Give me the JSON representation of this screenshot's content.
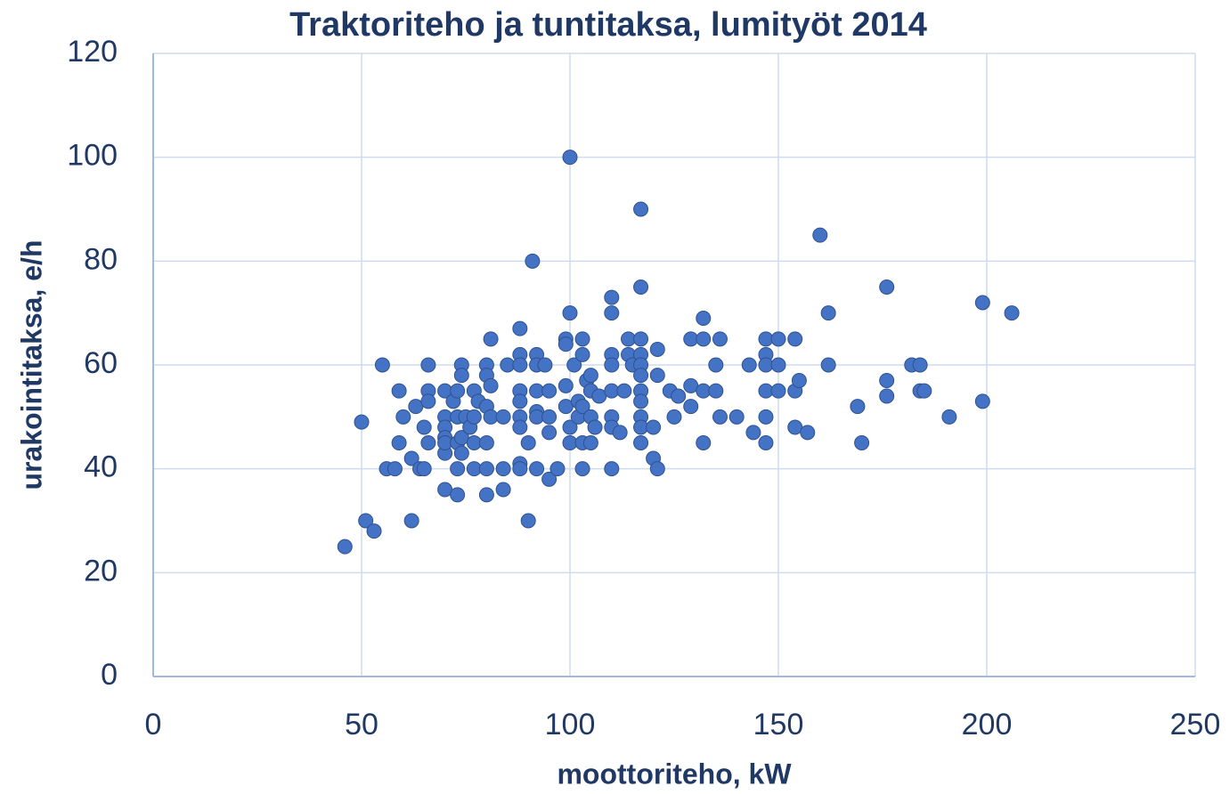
{
  "chart_data": {
    "type": "scatter",
    "title": "Traktoriteho ja tuntitaksa, lumityöt 2014",
    "xlabel": "moottoriteho, kW",
    "ylabel": "urakointitaksa, e/h",
    "color": "#4472c4",
    "grid": true,
    "xlim": [
      0,
      250
    ],
    "xticks": [
      0,
      50,
      100,
      150,
      200,
      250
    ],
    "ylim": [
      0,
      120
    ],
    "yticks": [
      0,
      20,
      40,
      60,
      80,
      100,
      120
    ],
    "x": [
      46,
      50,
      51,
      53,
      55,
      56,
      58,
      59,
      59,
      60,
      62,
      62,
      63,
      64,
      65,
      65,
      66,
      66,
      66,
      66,
      70,
      70,
      70,
      70,
      70,
      70,
      70,
      72,
      73,
      73,
      73,
      73,
      73,
      74,
      74,
      74,
      74,
      75,
      76,
      77,
      77,
      77,
      77,
      78,
      80,
      80,
      80,
      80,
      80,
      80,
      81,
      81,
      81,
      84,
      84,
      84,
      85,
      88,
      88,
      88,
      88,
      88,
      88,
      88,
      88,
      88,
      90,
      90,
      91,
      92,
      92,
      92,
      92,
      92,
      92,
      94,
      95,
      95,
      95,
      95,
      97,
      99,
      99,
      99,
      99,
      100,
      100,
      100,
      100,
      101,
      102,
      102,
      103,
      103,
      103,
      103,
      103,
      104,
      105,
      105,
      105,
      105,
      106,
      107,
      110,
      110,
      110,
      110,
      110,
      110,
      110,
      110,
      112,
      113,
      114,
      114,
      115,
      117,
      117,
      117,
      117,
      117,
      117,
      117,
      117,
      117,
      117,
      117,
      120,
      120,
      121,
      121,
      121,
      124,
      125,
      126,
      129,
      129,
      129,
      132,
      132,
      132,
      132,
      135,
      135,
      136,
      136,
      140,
      143,
      144,
      147,
      147,
      147,
      147,
      147,
      147,
      150,
      150,
      150,
      154,
      154,
      154,
      155,
      157,
      160,
      162,
      162,
      169,
      170,
      176,
      176,
      176,
      182,
      184,
      184,
      185,
      191,
      199,
      199,
      206
    ],
    "values": [
      25,
      49,
      30,
      28,
      60,
      40,
      40,
      55,
      45,
      50,
      30,
      42,
      52,
      40,
      40,
      48,
      60,
      55,
      53,
      45,
      55,
      50,
      48,
      46,
      43,
      36,
      45,
      53,
      55,
      50,
      45,
      40,
      35,
      60,
      58,
      46,
      43,
      50,
      48,
      55,
      50,
      45,
      40,
      53,
      52,
      60,
      58,
      45,
      40,
      35,
      65,
      56,
      50,
      50,
      40,
      36,
      60,
      67,
      62,
      60,
      55,
      53,
      50,
      48,
      41,
      40,
      30,
      45,
      80,
      62,
      60,
      55,
      51,
      50,
      40,
      60,
      38,
      50,
      55,
      47,
      40,
      65,
      64,
      56,
      52,
      100,
      70,
      48,
      45,
      60,
      53,
      50,
      65,
      62,
      45,
      40,
      52,
      57,
      58,
      55,
      50,
      45,
      48,
      54,
      73,
      70,
      62,
      60,
      55,
      50,
      48,
      40,
      47,
      55,
      65,
      62,
      60,
      90,
      75,
      65,
      62,
      60,
      58,
      55,
      53,
      50,
      48,
      45,
      42,
      48,
      63,
      40,
      58,
      55,
      50,
      54,
      65,
      56,
      52,
      69,
      65,
      55,
      45,
      60,
      55,
      65,
      50,
      50,
      60,
      47,
      65,
      62,
      60,
      55,
      50,
      45,
      65,
      60,
      55,
      65,
      55,
      48,
      57,
      47,
      85,
      70,
      60,
      52,
      45,
      75,
      57,
      54,
      60,
      60,
      55,
      55,
      50,
      72,
      53,
      70
    ]
  }
}
